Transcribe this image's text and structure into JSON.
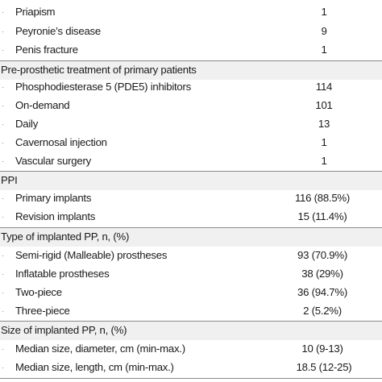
{
  "rows": [
    {
      "kind": "item",
      "label": "Priapism",
      "value": "1"
    },
    {
      "kind": "item",
      "label": "Peyronie’s disease",
      "value": "9"
    },
    {
      "kind": "item",
      "label": "Penis fracture",
      "value": "1"
    },
    {
      "kind": "section",
      "label": "Pre-prosthetic treatment of primary patients",
      "value": ""
    },
    {
      "kind": "item",
      "label": "Phosphodiesterase 5 (PDE5) inhibitors",
      "value": "114"
    },
    {
      "kind": "item",
      "label": "On-demand",
      "value": "101"
    },
    {
      "kind": "item",
      "label": "Daily",
      "value": "13"
    },
    {
      "kind": "item",
      "label": "Cavernosal injection",
      "value": "1"
    },
    {
      "kind": "item",
      "label": "Vascular surgery",
      "value": "1"
    },
    {
      "kind": "section",
      "label": "PPI",
      "value": ""
    },
    {
      "kind": "item",
      "label": "Primary implants",
      "value": "116 (88.5%)"
    },
    {
      "kind": "item",
      "label": "Revision implants",
      "value": "15 (11.4%)"
    },
    {
      "kind": "section",
      "label": "Type of implanted PP, n, (%)",
      "value": ""
    },
    {
      "kind": "item",
      "label": "Semi-rigid (Malleable) prostheses",
      "value": "93 (70.9%)"
    },
    {
      "kind": "item",
      "label": "Inflatable prostheses",
      "value": "38 (29%)"
    },
    {
      "kind": "item",
      "label": "Two-piece",
      "value": "36 (94.7%)"
    },
    {
      "kind": "item",
      "label": "Three-piece",
      "value": "2 (5.2%)"
    },
    {
      "kind": "section",
      "label": "Size of implanted PP, n, (%)",
      "value": ""
    },
    {
      "kind": "item",
      "label": "Median size, diameter, cm (min-max.)",
      "value": "10 (9-13)"
    },
    {
      "kind": "item",
      "label": "Median size, length, cm (min-max.)",
      "value": "18.5 (12-25)"
    }
  ]
}
